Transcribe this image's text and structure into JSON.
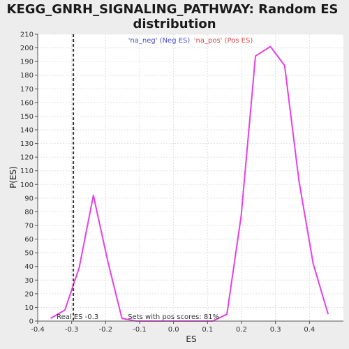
{
  "chart_data": {
    "type": "line",
    "title_lines": [
      "KEGG_GNRH_SIGNALING_PATHWAY: Random ES",
      "distribution"
    ],
    "xlabel": "ES",
    "ylabel": "P(ES)",
    "xlim": [
      -0.4,
      0.5
    ],
    "ylim": [
      0,
      210
    ],
    "x_ticks": [
      -0.4,
      -0.3,
      -0.2,
      -0.1,
      0.0,
      0.1,
      0.2,
      0.3,
      0.4
    ],
    "x_tick_labels": [
      "-0.4",
      "-0.3",
      "-0.2",
      "-0.1",
      "0.0",
      "0.1",
      "0.2",
      "0.3",
      "0.4"
    ],
    "y_ticks": [
      0,
      10,
      20,
      30,
      40,
      50,
      60,
      70,
      80,
      90,
      100,
      110,
      120,
      130,
      140,
      150,
      160,
      170,
      180,
      190,
      200,
      210
    ],
    "grid": true,
    "legend": [
      {
        "label": "'na_neg' (Neg ES)",
        "color": "#4b4bd6"
      },
      {
        "label": "'na_pos' (Pos ES)",
        "color": "#e04444"
      }
    ],
    "series": [
      {
        "color": "#e83ee8",
        "points": [
          [
            -0.362,
            2
          ],
          [
            -0.32,
            8
          ],
          [
            -0.278,
            39
          ],
          [
            -0.236,
            92
          ],
          [
            -0.194,
            44
          ],
          [
            -0.152,
            2
          ],
          [
            -0.11,
            0
          ],
          [
            -0.068,
            0
          ],
          [
            -0.026,
            0
          ],
          [
            0.016,
            0
          ],
          [
            0.058,
            0
          ],
          [
            0.1,
            0
          ],
          [
            0.115,
            0
          ],
          [
            0.157,
            5
          ],
          [
            0.199,
            77
          ],
          [
            0.241,
            194
          ],
          [
            0.285,
            201
          ],
          [
            0.327,
            187
          ],
          [
            0.369,
            103
          ],
          [
            0.411,
            42
          ],
          [
            0.455,
            5
          ]
        ]
      }
    ],
    "real_es": {
      "x": -0.295,
      "label": "Real ES -0.3"
    },
    "annotation": "Sets with pos scores: 81%"
  }
}
